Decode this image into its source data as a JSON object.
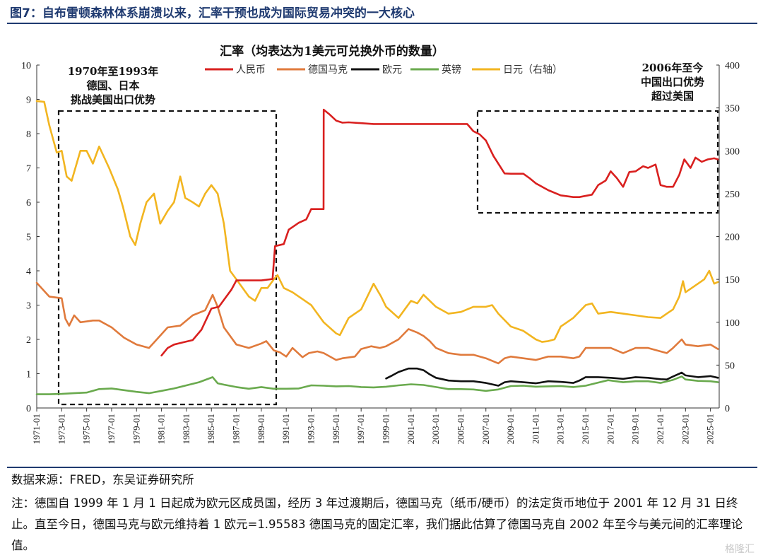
{
  "figure": {
    "title": "图7：自布雷顿森林体系崩溃以来，汇率干预也成为国际贸易冲突的一大核心"
  },
  "chart_data": {
    "type": "line",
    "title": "汇率（均表达为1美元可兑换外币的数量）",
    "ylim_left": [
      0,
      10
    ],
    "yticks_left": [
      "0",
      "1",
      "2",
      "3",
      "4",
      "5",
      "6",
      "7",
      "8",
      "9",
      "10"
    ],
    "ylim_right": [
      0,
      400
    ],
    "yticks_right": [
      "0",
      "50",
      "100",
      "150",
      "200",
      "250",
      "300",
      "350",
      "400"
    ],
    "xlim": [
      1971.0,
      2025.7
    ],
    "x_ticks": [
      "1971-01",
      "1973-01",
      "1975-01",
      "1977-01",
      "1979-01",
      "1981-01",
      "1983-01",
      "1985-01",
      "1987-01",
      "1989-01",
      "1991-01",
      "1993-01",
      "1995-01",
      "1997-01",
      "1999-01",
      "2001-01",
      "2003-01",
      "2005-01",
      "2007-01",
      "2009-01",
      "2011-01",
      "2013-01",
      "2015-01",
      "2017-01",
      "2019-01",
      "2021-01",
      "2023-01",
      "2025-01"
    ],
    "grid": false,
    "legend_position": "top-center",
    "series": [
      {
        "name": "人民币",
        "axis": "left",
        "color": "#d9201f",
        "x": [
          1981.0,
          1981.5,
          1982.0,
          1982.8,
          1983.5,
          1984.2,
          1985.0,
          1985.6,
          1986.6,
          1987.0,
          1988.0,
          1989.0,
          1989.9,
          1990.1,
          1990.8,
          1991.2,
          1992.0,
          1992.6,
          1993.0,
          1993.5,
          1993.99,
          1994.0,
          1994.5,
          1995.0,
          1995.5,
          1996.0,
          1998.0,
          2000.0,
          2005.5,
          2006.0,
          2006.5,
          2007.0,
          2007.6,
          2008.5,
          2009.0,
          2010.0,
          2010.5,
          2011.0,
          2012.0,
          2013.0,
          2014.0,
          2014.5,
          2015.5,
          2016.0,
          2016.6,
          2017.0,
          2017.5,
          2018.0,
          2018.5,
          2019.0,
          2019.6,
          2020.0,
          2020.6,
          2021.0,
          2021.5,
          2022.0,
          2022.5,
          2022.9,
          2023.4,
          2023.8,
          2024.3,
          2024.8,
          2025.3,
          2025.6
        ],
        "values": [
          1.53,
          1.75,
          1.85,
          1.92,
          1.98,
          2.28,
          2.9,
          2.95,
          3.45,
          3.72,
          3.72,
          3.72,
          3.76,
          4.72,
          4.78,
          5.2,
          5.4,
          5.5,
          5.8,
          5.8,
          5.8,
          8.7,
          8.55,
          8.38,
          8.32,
          8.33,
          8.28,
          8.28,
          8.28,
          8.07,
          7.98,
          7.8,
          7.35,
          6.84,
          6.83,
          6.83,
          6.7,
          6.55,
          6.35,
          6.2,
          6.15,
          6.15,
          6.22,
          6.5,
          6.63,
          6.9,
          6.7,
          6.45,
          6.88,
          6.9,
          7.05,
          7.0,
          7.1,
          6.5,
          6.45,
          6.45,
          6.8,
          7.25,
          7.0,
          7.3,
          7.18,
          7.25,
          7.28,
          7.25
        ]
      },
      {
        "name": "德国马克",
        "axis": "left",
        "color": "#e07a3c",
        "x": [
          1971.0,
          1972.0,
          1973.0,
          1973.3,
          1973.6,
          1974.0,
          1974.5,
          1975.5,
          1976.0,
          1977.0,
          1978.0,
          1979.0,
          1980.0,
          1980.5,
          1981.5,
          1982.5,
          1983.5,
          1984.5,
          1985.1,
          1985.5,
          1986.0,
          1987.0,
          1988.0,
          1989.0,
          1989.4,
          1990.0,
          1990.5,
          1991.0,
          1991.5,
          1992.3,
          1992.8,
          1993.5,
          1994.0,
          1995.0,
          1995.5,
          1996.5,
          1997.0,
          1997.8,
          1998.5,
          1999.0,
          2000.0,
          2000.8,
          2001.5,
          2002.0,
          2002.5,
          2003.0,
          2004.0,
          2005.0,
          2006.0,
          2007.0,
          2008.0,
          2008.5,
          2009.0,
          2010.0,
          2011.0,
          2012.0,
          2013.0,
          2014.0,
          2014.5,
          2015.0,
          2016.0,
          2017.0,
          2018.0,
          2019.0,
          2020.0,
          2021.0,
          2021.5,
          2022.0,
          2022.7,
          2023.0,
          2024.0,
          2025.0,
          2025.6
        ],
        "values": [
          3.65,
          3.25,
          3.2,
          2.6,
          2.4,
          2.7,
          2.5,
          2.55,
          2.55,
          2.35,
          2.05,
          1.85,
          1.75,
          1.95,
          2.35,
          2.4,
          2.7,
          2.85,
          3.3,
          2.95,
          2.35,
          1.85,
          1.75,
          1.88,
          1.95,
          1.68,
          1.62,
          1.5,
          1.75,
          1.48,
          1.6,
          1.65,
          1.6,
          1.4,
          1.45,
          1.5,
          1.72,
          1.8,
          1.75,
          1.8,
          2.0,
          2.3,
          2.2,
          2.1,
          1.95,
          1.75,
          1.6,
          1.55,
          1.55,
          1.45,
          1.3,
          1.45,
          1.5,
          1.45,
          1.4,
          1.5,
          1.5,
          1.45,
          1.5,
          1.75,
          1.75,
          1.75,
          1.6,
          1.75,
          1.75,
          1.65,
          1.6,
          1.75,
          2.0,
          1.85,
          1.8,
          1.85,
          1.72
        ]
      },
      {
        "name": "欧元",
        "axis": "left",
        "color": "#111111",
        "x": [
          1999.0,
          1999.5,
          2000.0,
          2000.8,
          2001.5,
          2002.0,
          2002.5,
          2003.0,
          2004.0,
          2005.0,
          2006.0,
          2007.0,
          2008.0,
          2008.5,
          2009.0,
          2010.0,
          2011.0,
          2012.0,
          2013.0,
          2014.0,
          2014.5,
          2015.0,
          2016.0,
          2017.0,
          2018.0,
          2019.0,
          2020.0,
          2021.0,
          2021.5,
          2022.0,
          2022.7,
          2023.0,
          2024.0,
          2025.0,
          2025.6
        ],
        "values": [
          0.86,
          0.95,
          1.05,
          1.15,
          1.15,
          1.1,
          0.98,
          0.88,
          0.8,
          0.78,
          0.78,
          0.73,
          0.65,
          0.75,
          0.78,
          0.75,
          0.72,
          0.78,
          0.76,
          0.73,
          0.8,
          0.9,
          0.9,
          0.88,
          0.85,
          0.9,
          0.88,
          0.84,
          0.83,
          0.92,
          1.03,
          0.95,
          0.9,
          0.93,
          0.88
        ]
      },
      {
        "name": "英镑",
        "axis": "left",
        "color": "#6aaa4e",
        "x": [
          1971.0,
          1972.0,
          1973.0,
          1974.0,
          1975.0,
          1976.0,
          1977.0,
          1978.0,
          1979.0,
          1980.0,
          1981.0,
          1982.0,
          1983.0,
          1984.0,
          1985.1,
          1985.5,
          1986.0,
          1987.0,
          1988.0,
          1989.0,
          1990.0,
          1991.0,
          1992.0,
          1993.0,
          1994.0,
          1995.0,
          1996.0,
          1997.0,
          1998.0,
          1999.0,
          2000.0,
          2001.0,
          2002.0,
          2003.0,
          2004.0,
          2005.0,
          2006.0,
          2007.0,
          2008.0,
          2009.0,
          2010.0,
          2011.0,
          2012.0,
          2013.0,
          2014.0,
          2015.0,
          2016.0,
          2016.8,
          2017.0,
          2018.0,
          2019.0,
          2020.0,
          2021.0,
          2022.0,
          2022.7,
          2023.0,
          2024.0,
          2025.0,
          2025.6
        ],
        "values": [
          0.4,
          0.4,
          0.41,
          0.43,
          0.45,
          0.55,
          0.57,
          0.52,
          0.47,
          0.43,
          0.5,
          0.57,
          0.66,
          0.75,
          0.9,
          0.72,
          0.68,
          0.61,
          0.56,
          0.61,
          0.56,
          0.56,
          0.57,
          0.66,
          0.65,
          0.63,
          0.64,
          0.61,
          0.6,
          0.62,
          0.66,
          0.69,
          0.67,
          0.61,
          0.55,
          0.55,
          0.54,
          0.5,
          0.54,
          0.64,
          0.65,
          0.62,
          0.63,
          0.64,
          0.61,
          0.65,
          0.74,
          0.81,
          0.8,
          0.75,
          0.78,
          0.78,
          0.73,
          0.82,
          0.92,
          0.83,
          0.79,
          0.78,
          0.75
        ]
      },
      {
        "name": "日元（右轴）",
        "axis": "right",
        "color": "#f2b520",
        "x": [
          1971.0,
          1971.6,
          1972.0,
          1972.6,
          1973.0,
          1973.4,
          1973.8,
          1974.5,
          1975.0,
          1975.5,
          1976.0,
          1976.8,
          1977.5,
          1977.9,
          1978.5,
          1978.9,
          1979.3,
          1979.8,
          1980.4,
          1980.9,
          1981.5,
          1982.0,
          1982.5,
          1982.9,
          1983.5,
          1984.0,
          1984.5,
          1985.0,
          1985.5,
          1986.0,
          1986.5,
          1987.0,
          1987.5,
          1988.0,
          1988.5,
          1989.0,
          1989.5,
          1990.0,
          1990.3,
          1990.8,
          1991.5,
          1992.5,
          1993.0,
          1993.5,
          1994.0,
          1995.0,
          1995.3,
          1996.0,
          1997.0,
          1998.0,
          1998.6,
          1999.0,
          2000.0,
          2001.0,
          2001.5,
          2002.0,
          2003.0,
          2004.0,
          2005.0,
          2006.0,
          2007.0,
          2007.5,
          2008.0,
          2009.0,
          2010.0,
          2011.0,
          2011.5,
          2012.0,
          2012.5,
          2013.0,
          2013.5,
          2014.0,
          2015.0,
          2015.5,
          2016.0,
          2017.0,
          2018.0,
          2019.0,
          2020.0,
          2021.0,
          2021.5,
          2022.0,
          2022.5,
          2022.8,
          2023.0,
          2023.5,
          2024.0,
          2024.5,
          2024.9,
          2025.3,
          2025.6
        ],
        "values": [
          358,
          357,
          330,
          298,
          300,
          270,
          265,
          300,
          300,
          285,
          305,
          280,
          255,
          235,
          200,
          190,
          215,
          240,
          250,
          215,
          230,
          240,
          270,
          245,
          240,
          235,
          250,
          260,
          250,
          215,
          160,
          150,
          140,
          130,
          125,
          140,
          140,
          150,
          155,
          140,
          135,
          125,
          120,
          110,
          100,
          87,
          85,
          105,
          115,
          145,
          130,
          118,
          105,
          125,
          122,
          132,
          118,
          110,
          112,
          118,
          118,
          120,
          110,
          95,
          90,
          80,
          77,
          78,
          80,
          95,
          100,
          105,
          120,
          122,
          110,
          112,
          110,
          108,
          106,
          105,
          110,
          115,
          130,
          148,
          135,
          140,
          145,
          150,
          160,
          145,
          147
        ]
      }
    ],
    "annotations": [
      {
        "lines": [
          "1970年至1993年",
          "德国、日本",
          "挑战美国出口优势"
        ]
      },
      {
        "lines": [
          "2006年至今",
          "中国出口优势",
          "超过美国"
        ]
      }
    ]
  },
  "notes": {
    "source": "数据来源：FRED，东吴证券研究所",
    "remark": "注：德国自 1999 年 1 月 1 日起成为欧元区成员国，经历 3 年过渡期后，德国马克（纸币/硬币）的法定货币地位于 2001 年 12 月 31 日终止。直至今日，德国马克与欧元维持着 1 欧元=1.95583 德国马克的固定汇率，我们据此估算了德国马克自 2002 年至今与美元间的汇率理论值。"
  },
  "watermark": "格隆汇"
}
